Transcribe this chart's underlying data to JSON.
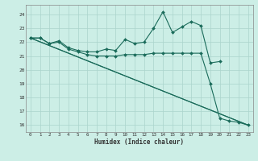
{
  "title": "",
  "xlabel": "Humidex (Indice chaleur)",
  "ylabel": "",
  "bg_color": "#cceee6",
  "grid_color": "#aad4cc",
  "line_color": "#1a6b5a",
  "xlim": [
    -0.5,
    23.5
  ],
  "ylim": [
    15.5,
    24.7
  ],
  "yticks": [
    16,
    17,
    18,
    19,
    20,
    21,
    22,
    23,
    24
  ],
  "xticks": [
    0,
    1,
    2,
    3,
    4,
    5,
    6,
    7,
    8,
    9,
    10,
    11,
    12,
    13,
    14,
    15,
    16,
    17,
    18,
    19,
    20,
    21,
    22,
    23
  ],
  "series": [
    {
      "x": [
        0,
        1,
        2,
        3,
        4,
        5,
        6,
        7,
        8,
        9,
        10,
        11,
        12,
        13,
        14,
        15,
        16,
        17,
        18,
        19,
        20
      ],
      "y": [
        22.3,
        22.3,
        21.9,
        22.1,
        21.6,
        21.4,
        21.3,
        21.3,
        21.5,
        21.4,
        22.2,
        21.9,
        22.0,
        23.0,
        24.2,
        22.7,
        23.1,
        23.5,
        23.2,
        20.5,
        20.6
      ],
      "marker": "D",
      "markersize": 2.0,
      "linewidth": 0.8
    },
    {
      "x": [
        0,
        1,
        2,
        3,
        4,
        5,
        6,
        7,
        8,
        9,
        10,
        11,
        12,
        13,
        14,
        15,
        16,
        17,
        18,
        19,
        20,
        21,
        22,
        23
      ],
      "y": [
        22.3,
        22.3,
        21.9,
        22.0,
        21.5,
        21.3,
        21.1,
        21.0,
        21.0,
        21.0,
        21.1,
        21.1,
        21.1,
        21.2,
        21.2,
        21.2,
        21.2,
        21.2,
        21.2,
        19.0,
        16.5,
        16.3,
        16.2,
        16.0
      ],
      "marker": "D",
      "markersize": 2.0,
      "linewidth": 0.8
    },
    {
      "x": [
        0,
        23
      ],
      "y": [
        22.3,
        16.0
      ],
      "marker": null,
      "markersize": 0,
      "linewidth": 0.8
    },
    {
      "x": [
        0,
        23
      ],
      "y": [
        22.3,
        16.0
      ],
      "marker": null,
      "markersize": 0,
      "linewidth": 0.8
    }
  ]
}
